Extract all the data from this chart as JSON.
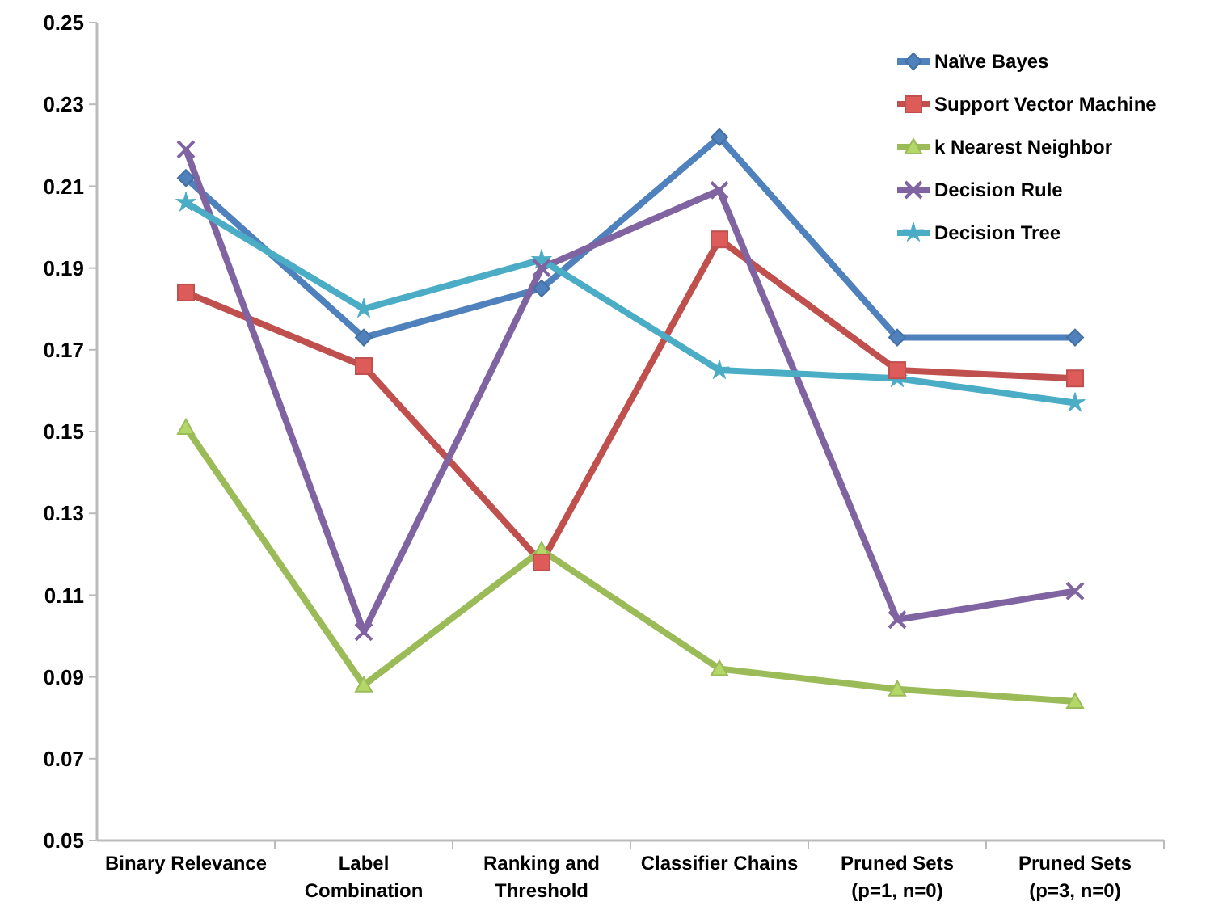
{
  "chart_data": {
    "type": "line",
    "categories": [
      "Binary Relevance",
      "Label\nCombination",
      "Ranking and\nThreshold",
      "Classifier Chains",
      "Pruned Sets\n(p=1, n=0)",
      "Pruned Sets\n(p=3, n=0)"
    ],
    "ylim": [
      0.05,
      0.25
    ],
    "yticks": [
      {
        "value": 0.05,
        "label": "0.05"
      },
      {
        "value": 0.07,
        "label": "0.07"
      },
      {
        "value": 0.09,
        "label": "0.09"
      },
      {
        "value": 0.11,
        "label": "0.11"
      },
      {
        "value": 0.13,
        "label": "0.13"
      },
      {
        "value": 0.15,
        "label": "0.15"
      },
      {
        "value": 0.17,
        "label": "0.17"
      },
      {
        "value": 0.19,
        "label": "0.19"
      },
      {
        "value": 0.21,
        "label": "0.21"
      },
      {
        "value": 0.23,
        "label": "0.23"
      },
      {
        "value": 0.25,
        "label": "0.25"
      }
    ],
    "grid": false,
    "legend": "top right",
    "line_style": "solid",
    "series": [
      {
        "name": "Naïve Bayes",
        "color": "#4f81bd",
        "marker": "diamond",
        "values": [
          0.212,
          0.173,
          0.185,
          0.222,
          0.173,
          0.173
        ]
      },
      {
        "name": "Support Vector Machine",
        "color": "#c0504d",
        "marker": "square",
        "values": [
          0.184,
          0.166,
          0.118,
          0.197,
          0.165,
          0.163
        ]
      },
      {
        "name": "k Nearest Neighbor",
        "color": "#9bbb59",
        "marker": "triangle",
        "values": [
          0.151,
          0.088,
          0.121,
          0.092,
          0.087,
          0.084
        ]
      },
      {
        "name": "Decision Rule",
        "color": "#8064a2",
        "marker": "cross",
        "values": [
          0.219,
          0.101,
          0.19,
          0.209,
          0.104,
          0.111
        ]
      },
      {
        "name": "Decision Tree",
        "color": "#4bacc6",
        "marker": "star",
        "values": [
          0.206,
          0.18,
          0.192,
          0.165,
          0.163,
          0.157
        ]
      }
    ]
  }
}
